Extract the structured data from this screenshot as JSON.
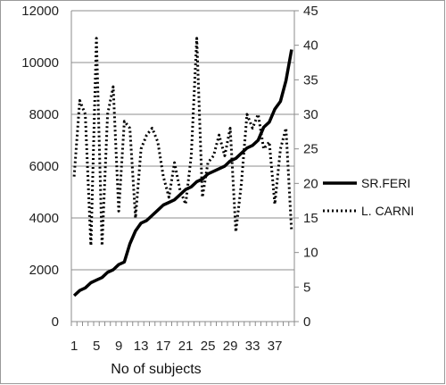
{
  "chart_data": {
    "type": "line",
    "title": "",
    "xlabel": "No of subjects",
    "ylabel": "",
    "x": [
      1,
      2,
      3,
      4,
      5,
      6,
      7,
      8,
      9,
      10,
      11,
      12,
      13,
      14,
      15,
      16,
      17,
      18,
      19,
      20,
      21,
      22,
      23,
      24,
      25,
      26,
      27,
      28,
      29,
      30,
      31,
      32,
      33,
      34,
      35,
      36,
      37,
      38,
      39,
      40
    ],
    "x_tick_labels": [
      "1",
      "5",
      "9",
      "13",
      "17",
      "21",
      "25",
      "29",
      "33",
      "37"
    ],
    "x_tick_values": [
      1,
      5,
      9,
      13,
      17,
      21,
      25,
      29,
      33,
      37
    ],
    "ylim_left": [
      0,
      12000
    ],
    "y_ticks_left": [
      "0",
      "2000",
      "4000",
      "6000",
      "8000",
      "10000",
      "12000"
    ],
    "ylim_right": [
      0,
      45
    ],
    "y_ticks_right": [
      "0",
      "5",
      "10",
      "15",
      "20",
      "25",
      "30",
      "35",
      "40",
      "45"
    ],
    "grid": "horizontal",
    "legend_position": "right",
    "series": [
      {
        "name": "SR.FERI",
        "axis": "left",
        "style": "solid",
        "color": "#000000",
        "values": [
          1000,
          1200,
          1300,
          1500,
          1600,
          1700,
          1900,
          2000,
          2200,
          2300,
          3000,
          3500,
          3800,
          3900,
          4100,
          4300,
          4500,
          4600,
          4700,
          4900,
          5100,
          5200,
          5400,
          5500,
          5700,
          5800,
          5900,
          6000,
          6200,
          6300,
          6500,
          6700,
          6800,
          7000,
          7500,
          7700,
          8200,
          8500,
          9300,
          10500
        ]
      },
      {
        "name": "L. CARNI",
        "axis": "right",
        "style": "dotted",
        "color": "#000000",
        "values": [
          21,
          32,
          30,
          11,
          41,
          11,
          30,
          34,
          16,
          29,
          28,
          15,
          25,
          27,
          28,
          26,
          21,
          18,
          23,
          19,
          17,
          24,
          41,
          18,
          23,
          24,
          27,
          24,
          28,
          13,
          20,
          30,
          28,
          30,
          25,
          26,
          17,
          25,
          28,
          13
        ]
      }
    ]
  }
}
